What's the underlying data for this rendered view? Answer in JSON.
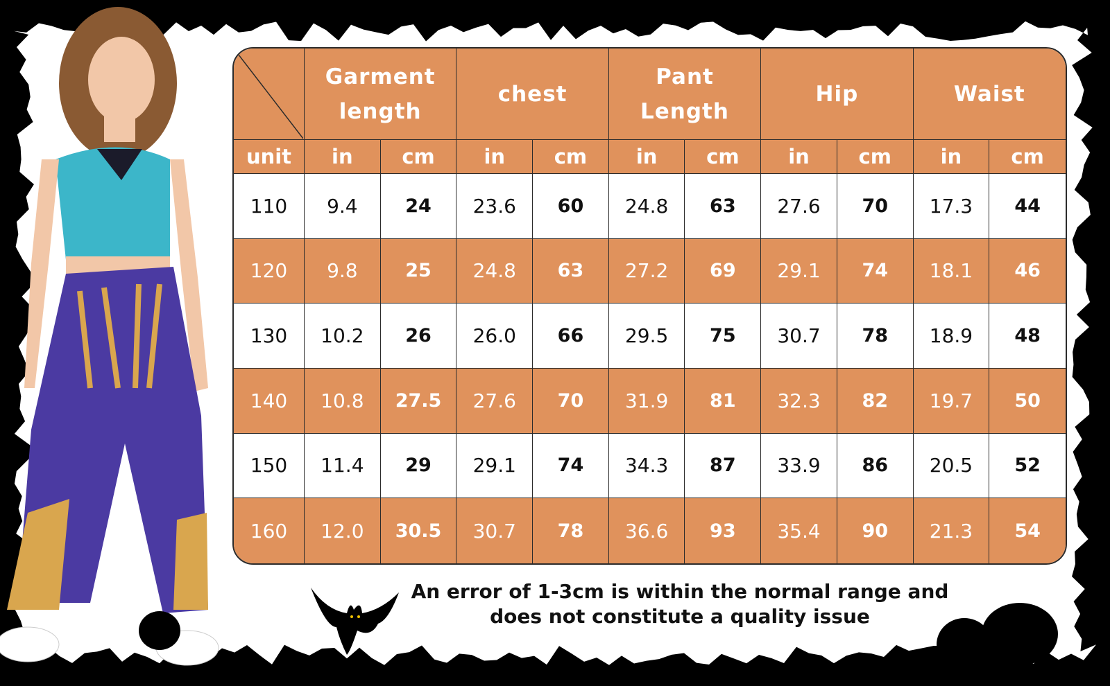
{
  "table": {
    "groups": [
      "Garment length",
      "chest",
      "Pant Length",
      "Hip",
      "Waist"
    ],
    "unit_label": "unit",
    "units": [
      "in",
      "cm"
    ],
    "rows": [
      [
        "110",
        "9.4",
        "24",
        "23.6",
        "60",
        "24.8",
        "63",
        "27.6",
        "70",
        "17.3",
        "44"
      ],
      [
        "120",
        "9.8",
        "25",
        "24.8",
        "63",
        "27.2",
        "69",
        "29.1",
        "74",
        "18.1",
        "46"
      ],
      [
        "130",
        "10.2",
        "26",
        "26.0",
        "66",
        "29.5",
        "75",
        "30.7",
        "78",
        "18.9",
        "48"
      ],
      [
        "140",
        "10.8",
        "27.5",
        "27.6",
        "70",
        "31.9",
        "81",
        "32.3",
        "82",
        "19.7",
        "50"
      ],
      [
        "150",
        "11.4",
        "29",
        "29.1",
        "74",
        "34.3",
        "87",
        "33.9",
        "86",
        "20.5",
        "52"
      ],
      [
        "160",
        "12.0",
        "30.5",
        "30.7",
        "78",
        "36.6",
        "93",
        "35.4",
        "90",
        "21.3",
        "54"
      ]
    ]
  },
  "note": "An error of 1-3cm is within the normal range and does not constitute a quality issue"
}
